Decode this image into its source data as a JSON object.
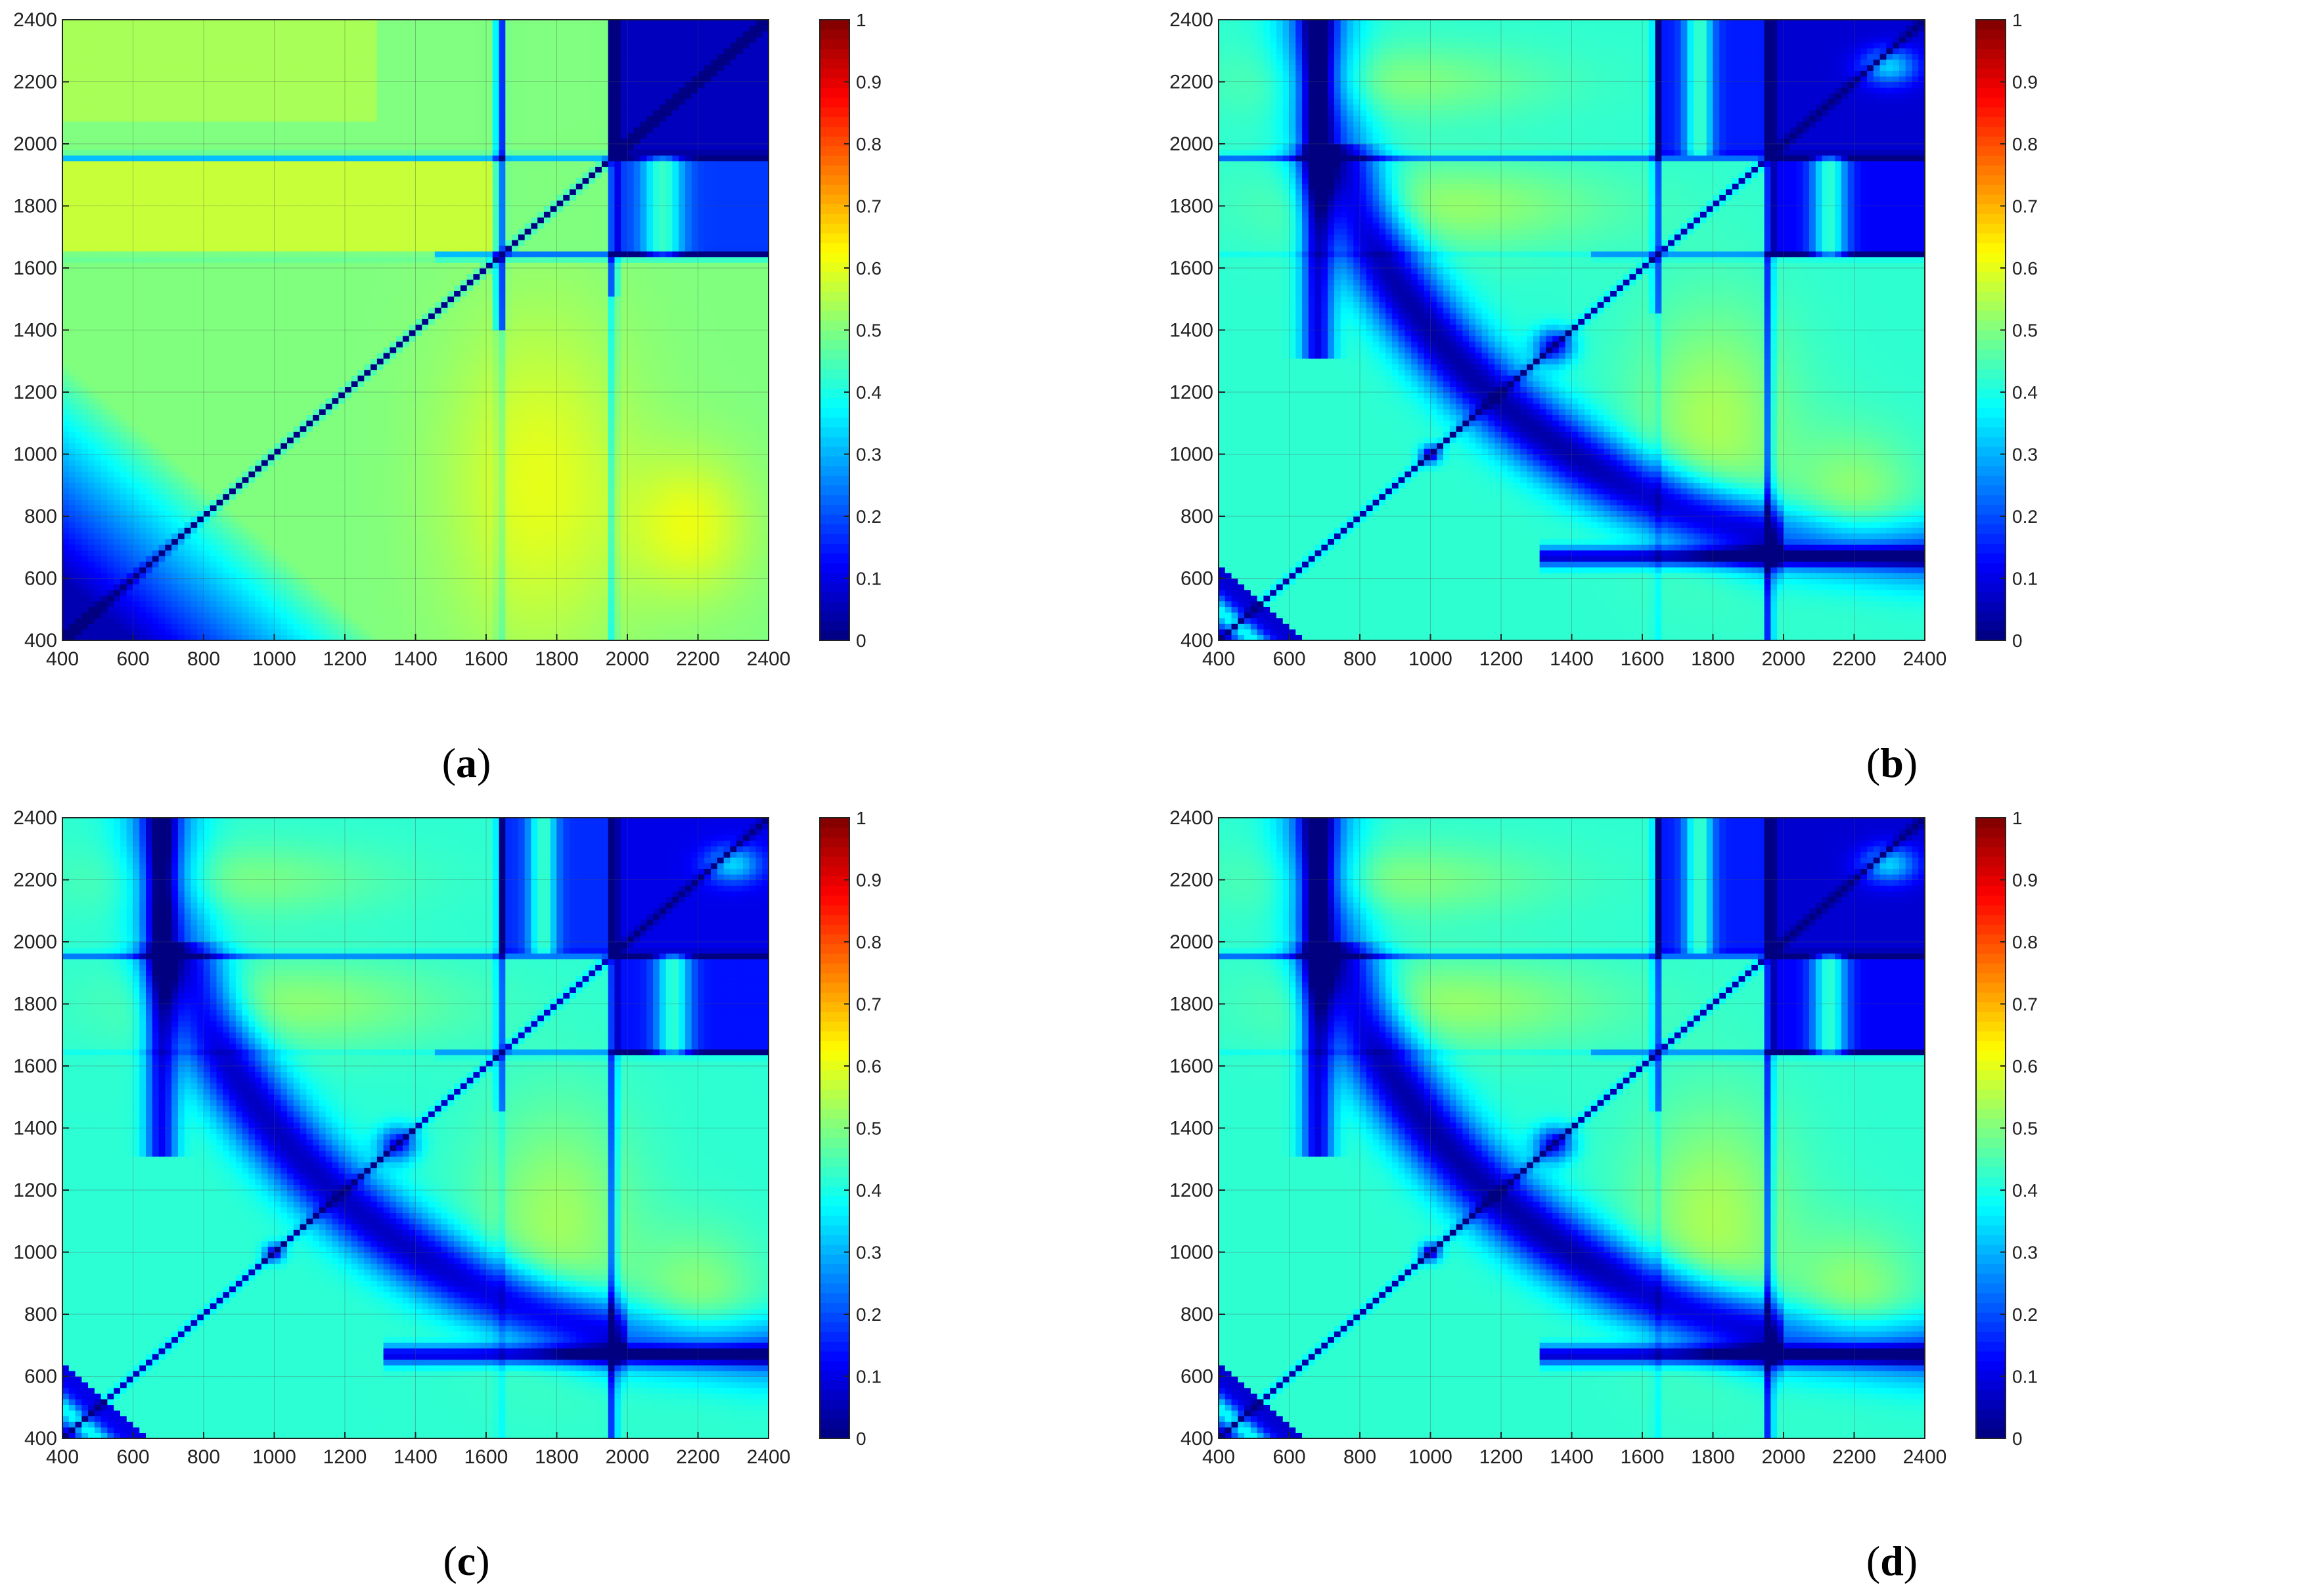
{
  "captions": [
    "(a)",
    "(b)",
    "(c)",
    "(d)"
  ],
  "caption_letters": [
    "a",
    "b",
    "c",
    "d"
  ],
  "chart_data": [
    {
      "type": "heatmap",
      "panel": "a",
      "xlim": [
        400,
        2400
      ],
      "ylim": [
        400,
        2400
      ],
      "xticks": [
        400,
        600,
        800,
        1000,
        1200,
        1400,
        1600,
        1800,
        2000,
        2200,
        2400
      ],
      "yticks": [
        400,
        600,
        800,
        1000,
        1200,
        1400,
        1600,
        1800,
        2000,
        2200,
        2400
      ],
      "grid": true,
      "colorbar": {
        "colormap": "jet",
        "range": [
          0,
          1
        ],
        "ticks": [
          0,
          0.1,
          0.2,
          0.3,
          0.4,
          0.5,
          0.6,
          0.7,
          0.8,
          0.9,
          1
        ],
        "placement": "right"
      },
      "approx_values": {
        "background": 0.5,
        "upper_left_block": 0.58,
        "lower_right_vertical_band_1650_1950": 0.6,
        "region_2050_2300_x_600_900_y": 0.6,
        "lower_left_corner": 0.1,
        "upper_right_block_1950_2400": 0.05,
        "diagonal": 0.0
      }
    },
    {
      "type": "heatmap",
      "panel": "b",
      "xlim": [
        400,
        2400
      ],
      "ylim": [
        400,
        2400
      ],
      "xticks": [
        400,
        600,
        800,
        1000,
        1200,
        1400,
        1600,
        1800,
        2000,
        2200,
        2400
      ],
      "yticks": [
        400,
        600,
        800,
        1000,
        1200,
        1400,
        1600,
        1800,
        2000,
        2200,
        2400
      ],
      "grid": true,
      "colorbar": {
        "colormap": "jet",
        "range": [
          0,
          1
        ],
        "ticks": [
          0,
          0.1,
          0.2,
          0.3,
          0.4,
          0.5,
          0.6,
          0.7,
          0.8,
          0.9,
          1
        ],
        "placement": "right"
      },
      "approx_values": {
        "background": 0.42,
        "green_region_1800_center": 0.52,
        "arc_band_low": 0.05,
        "upper_right_block_1950_2400": 0.08,
        "diagonal": 0.0
      }
    },
    {
      "type": "heatmap",
      "panel": "c",
      "xlim": [
        400,
        2400
      ],
      "ylim": [
        400,
        2400
      ],
      "xticks": [
        400,
        600,
        800,
        1000,
        1200,
        1400,
        1600,
        1800,
        2000,
        2200,
        2400
      ],
      "yticks": [
        400,
        600,
        800,
        1000,
        1200,
        1400,
        1600,
        1800,
        2000,
        2200,
        2400
      ],
      "grid": true,
      "colorbar": {
        "colormap": "jet",
        "range": [
          0,
          1
        ],
        "ticks": [
          0,
          0.1,
          0.2,
          0.3,
          0.4,
          0.5,
          0.6,
          0.7,
          0.8,
          0.9,
          1
        ],
        "placement": "right"
      },
      "approx_values": {
        "background": 0.42,
        "green_region_1800_center": 0.5,
        "arc_band_low": 0.05,
        "upper_right_block_1950_2400": 0.08,
        "diagonal": 0.0
      }
    },
    {
      "type": "heatmap",
      "panel": "d",
      "xlim": [
        400,
        2400
      ],
      "ylim": [
        400,
        2400
      ],
      "xticks": [
        400,
        600,
        800,
        1000,
        1200,
        1400,
        1600,
        1800,
        2000,
        2200,
        2400
      ],
      "yticks": [
        400,
        600,
        800,
        1000,
        1200,
        1400,
        1600,
        1800,
        2000,
        2200,
        2400
      ],
      "grid": true,
      "colorbar": {
        "colormap": "jet",
        "range": [
          0,
          1
        ],
        "ticks": [
          0,
          0.1,
          0.2,
          0.3,
          0.4,
          0.5,
          0.6,
          0.7,
          0.8,
          0.9,
          1
        ],
        "placement": "right"
      },
      "approx_values": {
        "background": 0.42,
        "green_region_1800_center": 0.52,
        "arc_band_low": 0.05,
        "upper_right_block_1950_2400": 0.08,
        "diagonal": 0.0
      }
    }
  ]
}
